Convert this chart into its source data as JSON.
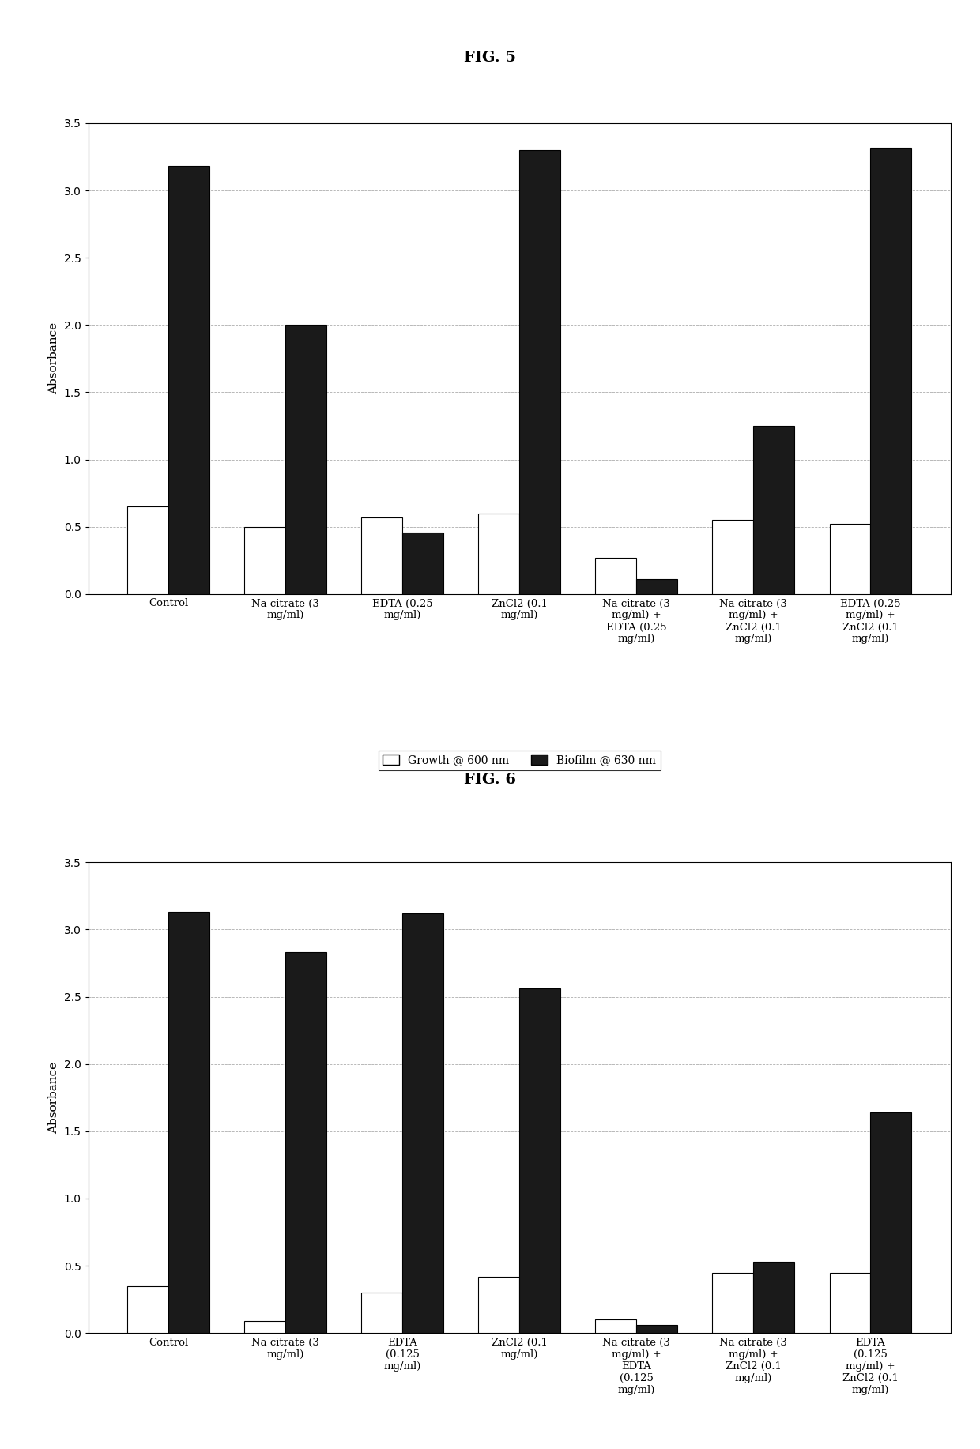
{
  "fig5": {
    "title": "FIG. 5",
    "categories": [
      "Control",
      "Na citrate (3\nmg/ml)",
      "EDTA (0.25\nmg/ml)",
      "ZnCl2 (0.1\nmg/ml)",
      "Na citrate (3\nmg/ml) +\nEDTA (0.25\nmg/ml)",
      "Na citrate (3\nmg/ml) +\nZnCl2 (0.1\nmg/ml)",
      "EDTA (0.25\nmg/ml) +\nZnCl2 (0.1\nmg/ml)"
    ],
    "growth": [
      0.65,
      0.5,
      0.57,
      0.6,
      0.27,
      0.55,
      0.52
    ],
    "biofilm": [
      3.18,
      2.0,
      0.46,
      3.3,
      0.11,
      1.25,
      3.32
    ],
    "ylabel": "Absorbance",
    "ylim": [
      0,
      3.5
    ],
    "yticks": [
      0,
      0.5,
      1.0,
      1.5,
      2.0,
      2.5,
      3.0,
      3.5
    ],
    "legend_growth": "Growth @ 600 nm",
    "legend_biofilm": "Biofilm @ 630 nm",
    "bar_width": 0.35,
    "growth_color": "#ffffff",
    "biofilm_color": "#1a1a1a",
    "bar_edge_color": "#000000"
  },
  "fig6": {
    "title": "FIG. 6",
    "categories": [
      "Control",
      "Na citrate (3\nmg/ml)",
      "EDTA\n(0.125\nmg/ml)",
      "ZnCl2 (0.1\nmg/ml)",
      "Na citrate (3\nmg/ml) +\nEDTA\n(0.125\nmg/ml)",
      "Na citrate (3\nmg/ml) +\nZnCl2 (0.1\nmg/ml)",
      "EDTA\n(0.125\nmg/ml) +\nZnCl2 (0.1\nmg/ml)"
    ],
    "growth": [
      0.35,
      0.09,
      0.3,
      0.42,
      0.1,
      0.45,
      0.45
    ],
    "biofilm": [
      3.13,
      2.83,
      3.12,
      2.56,
      0.06,
      0.53,
      1.64
    ],
    "ylabel": "Absorbance",
    "ylim": [
      0,
      3.5
    ],
    "yticks": [
      0,
      0.5,
      1.0,
      1.5,
      2.0,
      2.5,
      3.0,
      3.5
    ],
    "legend_growth": "Growth @ 600 nm",
    "legend_biofilm": "Biofilm @ 630 nm",
    "bar_width": 0.35,
    "growth_color": "#ffffff",
    "biofilm_color": "#1a1a1a",
    "bar_edge_color": "#000000"
  },
  "figure_bg": "#ffffff",
  "font_family": "DejaVu Serif"
}
